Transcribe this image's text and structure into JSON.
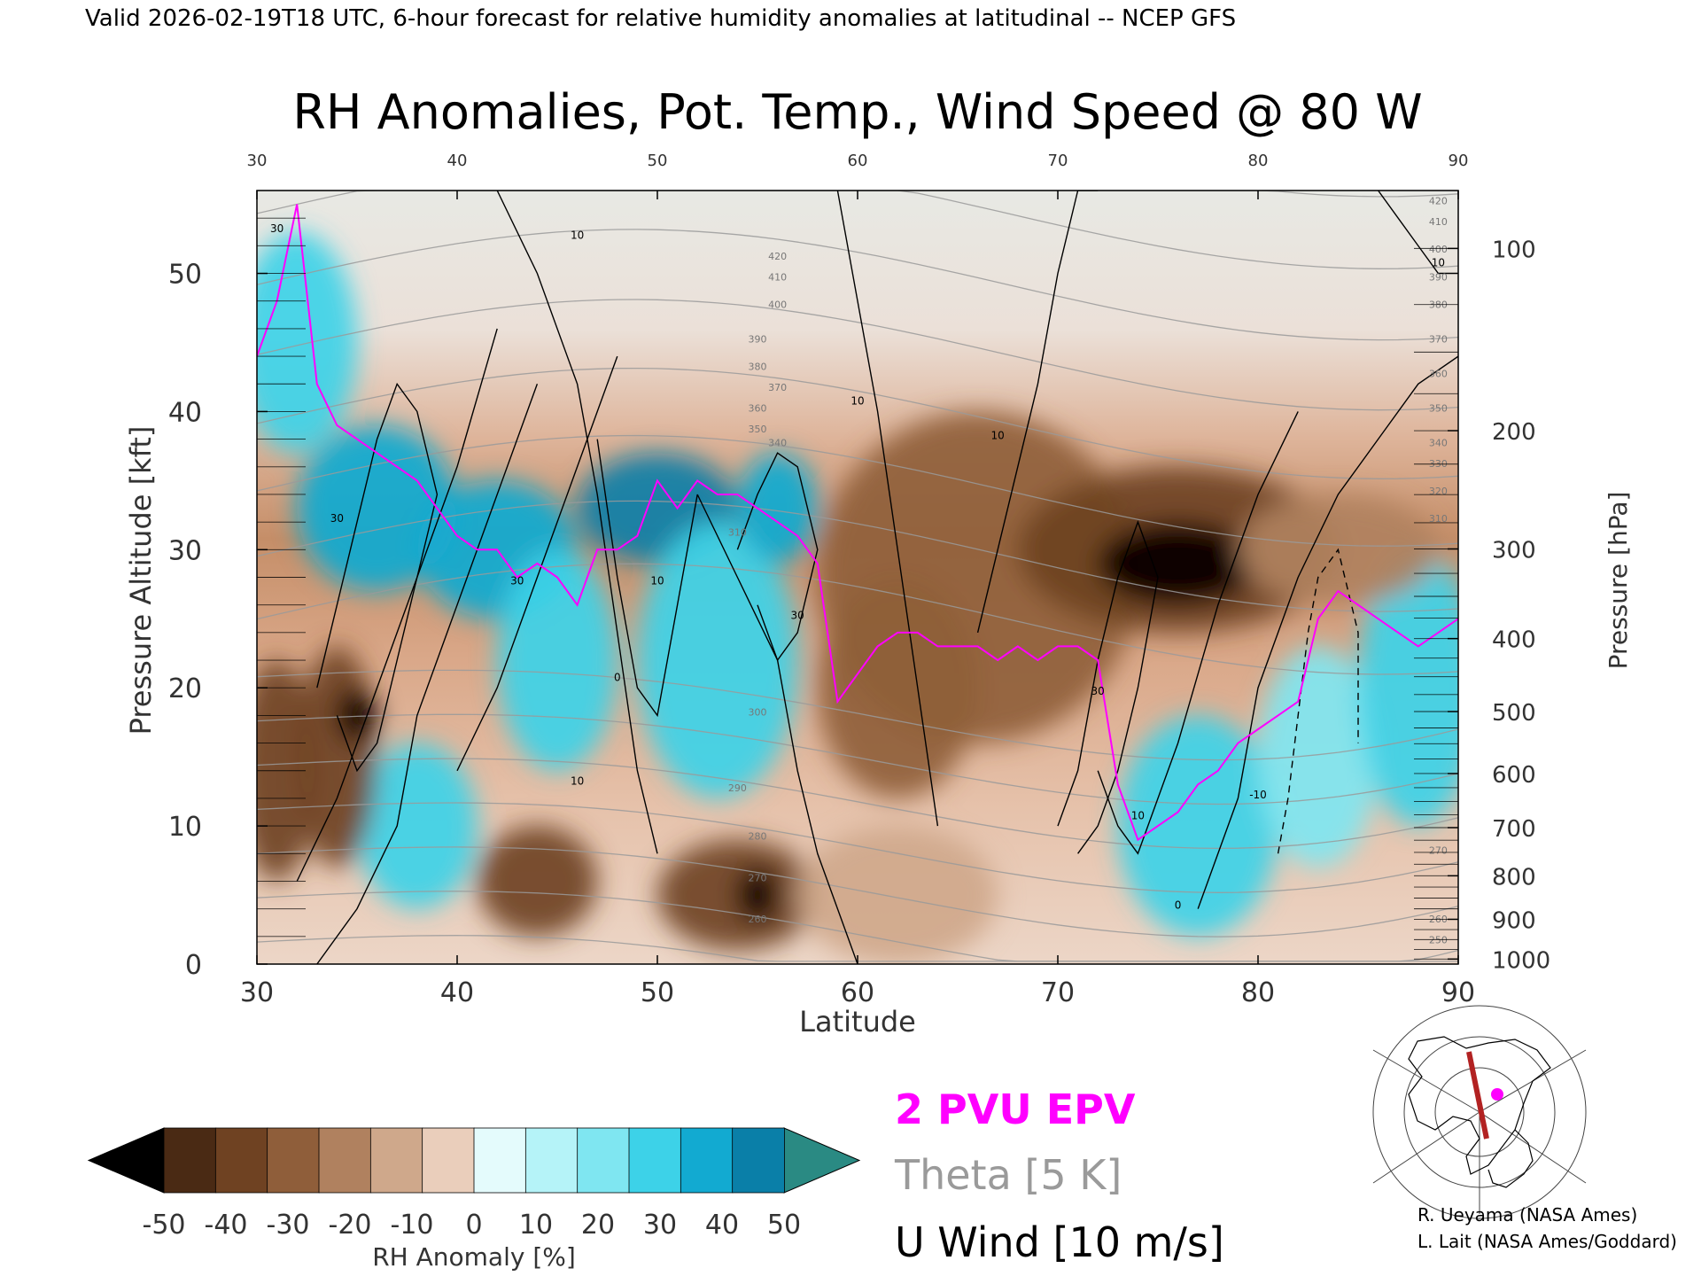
{
  "header": {
    "valid_line": "Valid 2026-02-19T18 UTC, 6-hour forecast for relative humidity anomalies at latitudinal -- NCEP GFS"
  },
  "chart_data": {
    "type": "heatmap",
    "title": "RH Anomalies, Pot. Temp., Wind Speed @ 80 W",
    "xlabel": "Latitude",
    "ylabel": "Pressure Altitude [kft]",
    "y2label": "Pressure [hPa]",
    "xlim": [
      30,
      90
    ],
    "ylim": [
      0,
      56
    ],
    "x_ticks": [
      "30",
      "40",
      "50",
      "60",
      "70",
      "80",
      "90"
    ],
    "y_ticks": [
      "0",
      "10",
      "20",
      "30",
      "40",
      "50"
    ],
    "pressure_ticks": [
      {
        "hpa": 100,
        "label": "100"
      },
      {
        "hpa": 200,
        "label": "200"
      },
      {
        "hpa": 300,
        "label": "300"
      },
      {
        "hpa": 400,
        "label": "400"
      },
      {
        "hpa": 500,
        "label": "500"
      },
      {
        "hpa": 600,
        "label": "600"
      },
      {
        "hpa": 700,
        "label": "700"
      },
      {
        "hpa": 800,
        "label": "800"
      },
      {
        "hpa": 900,
        "label": "900"
      },
      {
        "hpa": 1000,
        "label": "1000"
      }
    ],
    "rh_anomaly_blobs": [
      {
        "lat": 32,
        "kft": 45,
        "rx": 3,
        "ry": 8,
        "value": 30
      },
      {
        "lat": 36,
        "kft": 33,
        "rx": 4,
        "ry": 6,
        "value": 35
      },
      {
        "lat": 42,
        "kft": 30,
        "rx": 4,
        "ry": 5,
        "value": 35
      },
      {
        "lat": 45,
        "kft": 22,
        "rx": 3,
        "ry": 8,
        "value": 30
      },
      {
        "lat": 50,
        "kft": 33,
        "rx": 4,
        "ry": 4,
        "value": 45
      },
      {
        "lat": 53,
        "kft": 22,
        "rx": 4,
        "ry": 10,
        "value": 25
      },
      {
        "lat": 56,
        "kft": 33,
        "rx": 2,
        "ry": 4,
        "value": 40
      },
      {
        "lat": 38,
        "kft": 10,
        "rx": 3,
        "ry": 6,
        "value": 25
      },
      {
        "lat": 77,
        "kft": 10,
        "rx": 4,
        "ry": 8,
        "value": 30
      },
      {
        "lat": 83,
        "kft": 15,
        "rx": 3,
        "ry": 8,
        "value": 20
      },
      {
        "lat": 88,
        "kft": 20,
        "rx": 3,
        "ry": 10,
        "value": 25
      },
      {
        "lat": 34,
        "kft": 15,
        "rx": 2,
        "ry": 8,
        "value": -40
      },
      {
        "lat": 35,
        "kft": 18,
        "rx": 1,
        "ry": 2,
        "value": -50
      },
      {
        "lat": 31,
        "kft": 14,
        "rx": 2,
        "ry": 8,
        "value": -35
      },
      {
        "lat": 44,
        "kft": 6,
        "rx": 3,
        "ry": 4,
        "value": -35
      },
      {
        "lat": 54,
        "kft": 5,
        "rx": 4,
        "ry": 4,
        "value": -40
      },
      {
        "lat": 55,
        "kft": 5,
        "rx": 1,
        "ry": 2,
        "value": -50
      },
      {
        "lat": 66,
        "kft": 28,
        "rx": 8,
        "ry": 12,
        "value": -30
      },
      {
        "lat": 62,
        "kft": 20,
        "rx": 4,
        "ry": 8,
        "value": -30
      },
      {
        "lat": 76,
        "kft": 30,
        "rx": 8,
        "ry": 6,
        "value": -40
      },
      {
        "lat": 76,
        "kft": 29,
        "rx": 4,
        "ry": 3,
        "value": -50
      },
      {
        "lat": 84,
        "kft": 30,
        "rx": 5,
        "ry": 4,
        "value": -20
      },
      {
        "lat": 62,
        "kft": 5,
        "rx": 5,
        "ry": 5,
        "value": -15
      }
    ],
    "theta_levels": [
      {
        "value": 260,
        "label": "260"
      },
      {
        "value": 270,
        "label": "270"
      },
      {
        "value": 280,
        "label": "280"
      },
      {
        "value": 290,
        "label": "290"
      },
      {
        "value": 300,
        "label": "300"
      },
      {
        "value": 310,
        "label": "310"
      },
      {
        "value": 320,
        "label": "320"
      },
      {
        "value": 330,
        "label": "330"
      },
      {
        "value": 340,
        "label": "340"
      },
      {
        "value": 350,
        "label": "350"
      },
      {
        "value": 360,
        "label": "360"
      },
      {
        "value": 370,
        "label": "370"
      },
      {
        "value": 380,
        "label": "380"
      },
      {
        "value": 390,
        "label": "390"
      },
      {
        "value": 400,
        "label": "400"
      },
      {
        "value": 410,
        "label": "410"
      },
      {
        "value": 420,
        "label": "420"
      }
    ],
    "epv_2pvu": {
      "lat": [
        30,
        31,
        32,
        33,
        34,
        35,
        36,
        37,
        38,
        39,
        40,
        41,
        42,
        43,
        44,
        45,
        46,
        47,
        48,
        49,
        50,
        51,
        52,
        53,
        54,
        55,
        56,
        57,
        58,
        59,
        60,
        61,
        62,
        63,
        64,
        65,
        66,
        67,
        68,
        69,
        70,
        71,
        72,
        73,
        74,
        75,
        76,
        77,
        78,
        79,
        80,
        81,
        82,
        83,
        84,
        85,
        86,
        87,
        88,
        89,
        90
      ],
      "kft": [
        44,
        48,
        55,
        42,
        39,
        38,
        37,
        36,
        35,
        33,
        31,
        30,
        30,
        28,
        29,
        28,
        26,
        30,
        30,
        31,
        35,
        33,
        35,
        34,
        34,
        33,
        32,
        31,
        29,
        19,
        21,
        23,
        24,
        24,
        23,
        23,
        23,
        22,
        23,
        22,
        23,
        23,
        22,
        13,
        9,
        10,
        11,
        13,
        14,
        16,
        17,
        18,
        19,
        25,
        27,
        26,
        25,
        24,
        23,
        24,
        25
      ]
    },
    "u_wind_contours": [
      {
        "label": "10",
        "lat": [
          33,
          35,
          37,
          38,
          40,
          42,
          44
        ],
        "kft": [
          0,
          4,
          10,
          18,
          26,
          34,
          42
        ]
      },
      {
        "label": "20",
        "lat": [
          32,
          34,
          36,
          38,
          40,
          42
        ],
        "kft": [
          6,
          12,
          20,
          28,
          36,
          46
        ]
      },
      {
        "label": "30",
        "lat": [
          33,
          34,
          35,
          36,
          37,
          38,
          39,
          38,
          37,
          36,
          35,
          34
        ],
        "kft": [
          20,
          26,
          32,
          38,
          42,
          40,
          34,
          28,
          22,
          16,
          14,
          18
        ]
      },
      {
        "label": "30",
        "lat": [
          40,
          42,
          44,
          46,
          48
        ],
        "kft": [
          14,
          20,
          28,
          36,
          44
        ]
      },
      {
        "label": "10",
        "lat": [
          42,
          44,
          46,
          47,
          48,
          49,
          50
        ],
        "kft": [
          56,
          50,
          42,
          34,
          24,
          14,
          8
        ]
      },
      {
        "label": "0",
        "lat": [
          47,
          48,
          49,
          50,
          51,
          52
        ],
        "kft": [
          38,
          28,
          20,
          18,
          26,
          34
        ]
      },
      {
        "label": "10",
        "lat": [
          52,
          54,
          56,
          57,
          58,
          59,
          60
        ],
        "kft": [
          34,
          28,
          22,
          14,
          8,
          4,
          0
        ]
      },
      {
        "label": "30",
        "lat": [
          54,
          55,
          56,
          57,
          58,
          57,
          56,
          55
        ],
        "kft": [
          30,
          34,
          37,
          36,
          30,
          24,
          22,
          26
        ]
      },
      {
        "label": "10",
        "lat": [
          59,
          60,
          61,
          62,
          63,
          64
        ],
        "kft": [
          56,
          48,
          40,
          30,
          20,
          10
        ]
      },
      {
        "label": "10",
        "lat": [
          66,
          67,
          68,
          69,
          70,
          71,
          72
        ],
        "kft": [
          24,
          30,
          36,
          42,
          50,
          56,
          56
        ]
      },
      {
        "label": "30",
        "lat": [
          70,
          71,
          72,
          73,
          74,
          75,
          74,
          73,
          72,
          71
        ],
        "kft": [
          10,
          14,
          22,
          28,
          32,
          28,
          20,
          14,
          10,
          8
        ]
      },
      {
        "label": "10",
        "lat": [
          72,
          73,
          74,
          76,
          78,
          80,
          82
        ],
        "kft": [
          14,
          10,
          8,
          16,
          26,
          34,
          40
        ]
      },
      {
        "label": "0",
        "lat": [
          77,
          78,
          79,
          80,
          82,
          84,
          86,
          88,
          90
        ],
        "kft": [
          4,
          8,
          12,
          20,
          28,
          34,
          38,
          42,
          44
        ]
      },
      {
        "label": "10",
        "lat": [
          86,
          87,
          88,
          89,
          90
        ],
        "kft": [
          56,
          54,
          52,
          50,
          50
        ]
      },
      {
        "label": "-10",
        "lat": [
          81,
          81.5,
          82,
          82.5,
          83,
          84,
          85,
          85
        ],
        "kft": [
          8,
          12,
          18,
          24,
          28,
          30,
          24,
          16
        ]
      }
    ],
    "inline_theta_labels": [
      {
        "lat": 56,
        "kft": 51,
        "label": "420"
      },
      {
        "lat": 56,
        "kft": 49.5,
        "label": "410"
      },
      {
        "lat": 56,
        "kft": 47.5,
        "label": "400"
      },
      {
        "lat": 55,
        "kft": 45,
        "label": "390"
      },
      {
        "lat": 55,
        "kft": 43,
        "label": "380"
      },
      {
        "lat": 56,
        "kft": 41.5,
        "label": "370"
      },
      {
        "lat": 55,
        "kft": 40,
        "label": "360"
      },
      {
        "lat": 55,
        "kft": 38.5,
        "label": "350"
      },
      {
        "lat": 56,
        "kft": 37.5,
        "label": "340"
      },
      {
        "lat": 54,
        "kft": 31,
        "label": "310"
      },
      {
        "lat": 55,
        "kft": 18,
        "label": "300"
      },
      {
        "lat": 54,
        "kft": 12.5,
        "label": "290"
      },
      {
        "lat": 55,
        "kft": 9,
        "label": "280"
      },
      {
        "lat": 55,
        "kft": 6,
        "label": "270"
      },
      {
        "lat": 55,
        "kft": 3,
        "label": "260"
      },
      {
        "lat": 89,
        "kft": 55,
        "label": "420"
      },
      {
        "lat": 89,
        "kft": 53.5,
        "label": "410"
      },
      {
        "lat": 89,
        "kft": 51.5,
        "label": "400"
      },
      {
        "lat": 89,
        "kft": 49.5,
        "label": "390"
      },
      {
        "lat": 89,
        "kft": 47.5,
        "label": "380"
      },
      {
        "lat": 89,
        "kft": 45,
        "label": "370"
      },
      {
        "lat": 89,
        "kft": 42.5,
        "label": "360"
      },
      {
        "lat": 89,
        "kft": 40,
        "label": "350"
      },
      {
        "lat": 89,
        "kft": 37.5,
        "label": "340"
      },
      {
        "lat": 89,
        "kft": 36,
        "label": "330"
      },
      {
        "lat": 89,
        "kft": 34,
        "label": "320"
      },
      {
        "lat": 89,
        "kft": 32,
        "label": "310"
      },
      {
        "lat": 89,
        "kft": 8,
        "label": "270"
      },
      {
        "lat": 89,
        "kft": 3,
        "label": "260"
      },
      {
        "lat": 89,
        "kft": 1.5,
        "label": "250"
      }
    ],
    "inline_wind_labels": [
      {
        "lat": 31,
        "kft": 53,
        "label": "30"
      },
      {
        "lat": 46,
        "kft": 52.5,
        "label": "10"
      },
      {
        "lat": 34,
        "kft": 32,
        "label": "30"
      },
      {
        "lat": 43,
        "kft": 27.5,
        "label": "30"
      },
      {
        "lat": 50,
        "kft": 27.5,
        "label": "10"
      },
      {
        "lat": 48,
        "kft": 20.5,
        "label": "0"
      },
      {
        "lat": 57,
        "kft": 25,
        "label": "30"
      },
      {
        "lat": 46,
        "kft": 13,
        "label": "10"
      },
      {
        "lat": 60,
        "kft": 40.5,
        "label": "10"
      },
      {
        "lat": 67,
        "kft": 38,
        "label": "10"
      },
      {
        "lat": 72,
        "kft": 19.5,
        "label": "30"
      },
      {
        "lat": 74,
        "kft": 10.5,
        "label": "10"
      },
      {
        "lat": 76,
        "kft": 4,
        "label": "0"
      },
      {
        "lat": 80,
        "kft": 12,
        "label": "-10"
      },
      {
        "lat": 89,
        "kft": 50.5,
        "label": "10"
      }
    ],
    "colorbar": {
      "label": "RH Anomaly [%]",
      "ticks": [
        "-50",
        "-40",
        "-30",
        "-20",
        "-10",
        "0",
        "10",
        "20",
        "30",
        "40",
        "50"
      ],
      "colors": [
        "#1c1008",
        "#4a2a14",
        "#6f4222",
        "#8f5e3a",
        "#b0815f",
        "#cfa88b",
        "#eacebb",
        "#e4fbfc",
        "#b5f3f8",
        "#7fe6f1",
        "#3dd2e8",
        "#12aad1",
        "#0a7fa8",
        "#2a8a83"
      ],
      "under_color": "#000000",
      "over_color": "#2a8a83"
    },
    "legend": {
      "epv_label": "2 PVU EPV",
      "theta_label": "Theta [5 K]",
      "wind_label": "U Wind [10 m/s]",
      "epv_color": "#ff00ff",
      "theta_color": "#9a9a9a",
      "wind_color": "#000000"
    }
  },
  "credits": {
    "line1": "R. Ueyama (NASA Ames)",
    "line2": "L. Lait (NASA Ames/Goddard)"
  }
}
